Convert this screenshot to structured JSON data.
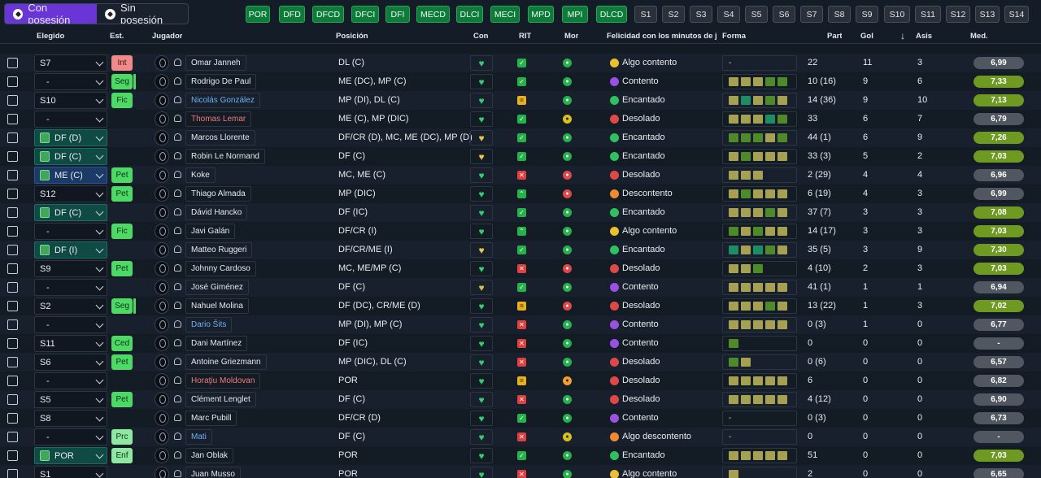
{
  "mode_toggle": {
    "con_label": "Con posesión",
    "sin_label": "Sin posesión"
  },
  "position_filters": [
    "POR",
    "DFD",
    "DFCD",
    "DFCI",
    "DFI",
    "MECD",
    "DLCI",
    "MECI",
    "MPD",
    "MPI",
    "DLCD"
  ],
  "set_filters": [
    "S1",
    "S2",
    "S3",
    "S4",
    "S5",
    "S6",
    "S7",
    "S8",
    "S9",
    "S10",
    "S11",
    "S12",
    "S13",
    "S14"
  ],
  "columns": {
    "elegido": "Elegido",
    "est": "Est.",
    "jugador": "Jugador",
    "posicion": "Posición",
    "con": "Con",
    "rit": "RIT",
    "mor": "Mor",
    "felicidad": "Felicidad con los minutos de jue...",
    "forma": "Forma",
    "part": "Part",
    "gol": "Gol",
    "asis": "Asis",
    "med": "Med."
  },
  "sort_icon": "arrow-down-icon",
  "rows": [
    {
      "elegido": "S7",
      "est": "Int",
      "name": "Omar Janneh",
      "pos": "DL (C)",
      "con": "heart",
      "rit": "ok",
      "mor": "g",
      "feli": "Algo contento",
      "forma": [
        "-"
      ],
      "part": "22",
      "gol": "11",
      "asis": "3",
      "med": "6,99"
    },
    {
      "elegido": "-",
      "est": "Seg",
      "name": "Rodrigo De Paul",
      "pos": "ME (DC), MP (C)",
      "con": "heart",
      "rit": "ok",
      "mor": "g",
      "feli": "Contento",
      "forma": [
        "y",
        "y",
        "y",
        "g",
        "g"
      ],
      "part": "10 (16)",
      "gol": "9",
      "asis": "6",
      "med": "7,33"
    },
    {
      "elegido": "S10",
      "est": "Fic",
      "name": "Nicolás González",
      "pos": "MP (DI), DL (C)",
      "con": "heart",
      "rit": "eq",
      "mor": "g",
      "feli": "Encantado",
      "forma": [
        "y",
        "t",
        "y",
        "g",
        "y"
      ],
      "part": "14 (36)",
      "gol": "9",
      "asis": "10",
      "med": "7,13"
    },
    {
      "elegido": "-",
      "est": "",
      "name": "Thomas Lemar",
      "pos": "ME (C), MP (DIC)",
      "con": "heart",
      "rit": "ok",
      "mor": "y",
      "feli": "Desolado",
      "forma": [
        "y",
        "y",
        "y",
        "t",
        "g"
      ],
      "part": "33",
      "gol": "6",
      "asis": "7",
      "med": "6,79"
    },
    {
      "elegido": "DF (D)",
      "est": "",
      "name": "Marcos Llorente",
      "pos": "DF/CR (D), MC, ME (DC), MP (D)",
      "con": "heart-y",
      "rit": "ok",
      "mor": "g",
      "feli": "Encantado",
      "forma": [
        "g",
        "g",
        "g",
        "y",
        "g"
      ],
      "part": "44 (1)",
      "gol": "6",
      "asis": "9",
      "med": "7,26"
    },
    {
      "elegido": "DF (C)",
      "est": "",
      "name": "Robin Le Normand",
      "pos": "DF (C)",
      "con": "heart-y",
      "rit": "ok",
      "mor": "g",
      "feli": "Encantado",
      "forma": [
        "y",
        "g",
        "y",
        "y",
        "y"
      ],
      "part": "33 (3)",
      "gol": "5",
      "asis": "2",
      "med": "7,03"
    },
    {
      "elegido": "ME (C)",
      "est": "Pet",
      "name": "Koke",
      "pos": "MC, ME (C)",
      "con": "heart",
      "rit": "x",
      "mor": "r",
      "feli": "Desolado",
      "forma": [
        "y",
        "y",
        "y"
      ],
      "part": "2 (29)",
      "gol": "4",
      "asis": "4",
      "med": "6,96"
    },
    {
      "elegido": "S12",
      "est": "Pet",
      "name": "Thiago Almada",
      "pos": "MP (DIC)",
      "con": "heart",
      "rit": "up",
      "mor": "r",
      "feli": "Descontento",
      "forma": [
        "y",
        "g",
        "y",
        "y",
        "y"
      ],
      "part": "6 (19)",
      "gol": "4",
      "asis": "3",
      "med": "6,99"
    },
    {
      "elegido": "DF (C)",
      "est": "",
      "name": "Dávid Hancko",
      "pos": "DF (IC)",
      "con": "heart",
      "rit": "ok",
      "mor": "g",
      "feli": "Encantado",
      "forma": [
        "y",
        "y",
        "y",
        "g",
        "y"
      ],
      "part": "37 (7)",
      "gol": "3",
      "asis": "3",
      "med": "7,08"
    },
    {
      "elegido": "-",
      "est": "Fic",
      "name": "Javi Galán",
      "pos": "DF/CR (I)",
      "con": "heart",
      "rit": "up",
      "mor": "g",
      "feli": "Algo contento",
      "forma": [
        "g",
        "y",
        "g",
        "y",
        "y"
      ],
      "part": "14 (17)",
      "gol": "3",
      "asis": "3",
      "med": "7,03"
    },
    {
      "elegido": "DF (I)",
      "est": "",
      "name": "Matteo Ruggeri",
      "pos": "DF/CR/ME (I)",
      "con": "heart-y",
      "rit": "ok",
      "mor": "g",
      "feli": "Encantado",
      "forma": [
        "t",
        "y",
        "t",
        "g",
        "y"
      ],
      "part": "35 (5)",
      "gol": "3",
      "asis": "9",
      "med": "7,30"
    },
    {
      "elegido": "S9",
      "est": "Pet",
      "name": "Johnny Cardoso",
      "pos": "MC, ME/MP (C)",
      "con": "heart",
      "rit": "x",
      "mor": "r",
      "feli": "Desolado",
      "forma": [
        "y",
        "y",
        "g"
      ],
      "part": "4 (10)",
      "gol": "2",
      "asis": "3",
      "med": "7,03"
    },
    {
      "elegido": "-",
      "est": "",
      "name": "José Giménez",
      "pos": "DF (C)",
      "con": "heart-yg",
      "rit": "ok",
      "mor": "g",
      "feli": "Contento",
      "forma": [
        "y",
        "y",
        "y",
        "y",
        "y"
      ],
      "part": "41 (1)",
      "gol": "1",
      "asis": "1",
      "med": "6,94"
    },
    {
      "elegido": "S2",
      "est": "Seg",
      "name": "Nahuel Molina",
      "pos": "DF (DC), CR/ME (D)",
      "con": "heart",
      "rit": "eq",
      "mor": "r",
      "feli": "Desolado",
      "forma": [
        "y",
        "y",
        "y",
        "g",
        "y"
      ],
      "part": "13 (22)",
      "gol": "1",
      "asis": "3",
      "med": "7,02"
    },
    {
      "elegido": "-",
      "est": "",
      "name": "Dario Šits",
      "pos": "MP (DI), MP (C)",
      "con": "heart",
      "rit": "x",
      "mor": "g",
      "feli": "Contento",
      "forma": [
        "y",
        "y",
        "y",
        "y",
        "y"
      ],
      "part": "0 (3)",
      "gol": "1",
      "asis": "0",
      "med": "6,77"
    },
    {
      "elegido": "S11",
      "est": "Ced",
      "name": "Dani Martínez",
      "pos": "DF (IC)",
      "con": "heart",
      "rit": "x",
      "mor": "g",
      "feli": "Contento",
      "forma": [
        "g"
      ],
      "part": "0",
      "gol": "0",
      "asis": "0",
      "med": "-"
    },
    {
      "elegido": "S6",
      "est": "Pet",
      "name": "Antoine Griezmann",
      "pos": "MP (DIC), DL (C)",
      "con": "heart",
      "rit": "x",
      "mor": "g",
      "feli": "Desolado",
      "forma": [
        "g",
        "y"
      ],
      "part": "0 (6)",
      "gol": "0",
      "asis": "0",
      "med": "6,57"
    },
    {
      "elegido": "-",
      "est": "",
      "name": "Horaţiu Moldovan",
      "pos": "POR",
      "con": "heart",
      "rit": "eq",
      "mor": "o",
      "feli": "Desolado",
      "forma": [
        "y",
        "y",
        "y",
        "y",
        "y"
      ],
      "part": "6",
      "gol": "0",
      "asis": "0",
      "med": "6,82"
    },
    {
      "elegido": "S5",
      "est": "Pet",
      "name": "Clément Lenglet",
      "pos": "DF (C)",
      "con": "heart",
      "rit": "x",
      "mor": "g",
      "feli": "Desolado",
      "forma": [
        "y",
        "y",
        "y",
        "y",
        "y"
      ],
      "part": "4 (12)",
      "gol": "0",
      "asis": "0",
      "med": "6,90"
    },
    {
      "elegido": "S8",
      "est": "",
      "name": "Marc Pubill",
      "pos": "DF/CR (D)",
      "con": "heart",
      "rit": "ok",
      "mor": "g",
      "feli": "Contento",
      "forma": [
        "-"
      ],
      "part": "0 (3)",
      "gol": "0",
      "asis": "0",
      "med": "6,73"
    },
    {
      "elegido": "-",
      "est": "Prc",
      "name": "Mati",
      "pos": "DF (C)",
      "con": "heart",
      "rit": "x",
      "mor": "y",
      "feli": "Algo descontento",
      "forma": [
        "-"
      ],
      "part": "0",
      "gol": "0",
      "asis": "0",
      "med": "-"
    },
    {
      "elegido": "POR",
      "est": "Enf",
      "name": "Jan Oblak",
      "pos": "POR",
      "con": "heart",
      "rit": "ok",
      "mor": "g",
      "feli": "Encantado",
      "forma": [
        "y",
        "y",
        "y",
        "y",
        "y"
      ],
      "part": "51",
      "gol": "0",
      "asis": "0",
      "med": "7,03"
    },
    {
      "elegido": "S1",
      "est": "",
      "name": "Juan Musso",
      "pos": "POR",
      "con": "heart",
      "rit": "x",
      "mor": "g",
      "feli": "Algo contento",
      "forma": [
        "y"
      ],
      "part": "2",
      "gol": "0",
      "asis": "0",
      "med": "6,65"
    }
  ]
}
